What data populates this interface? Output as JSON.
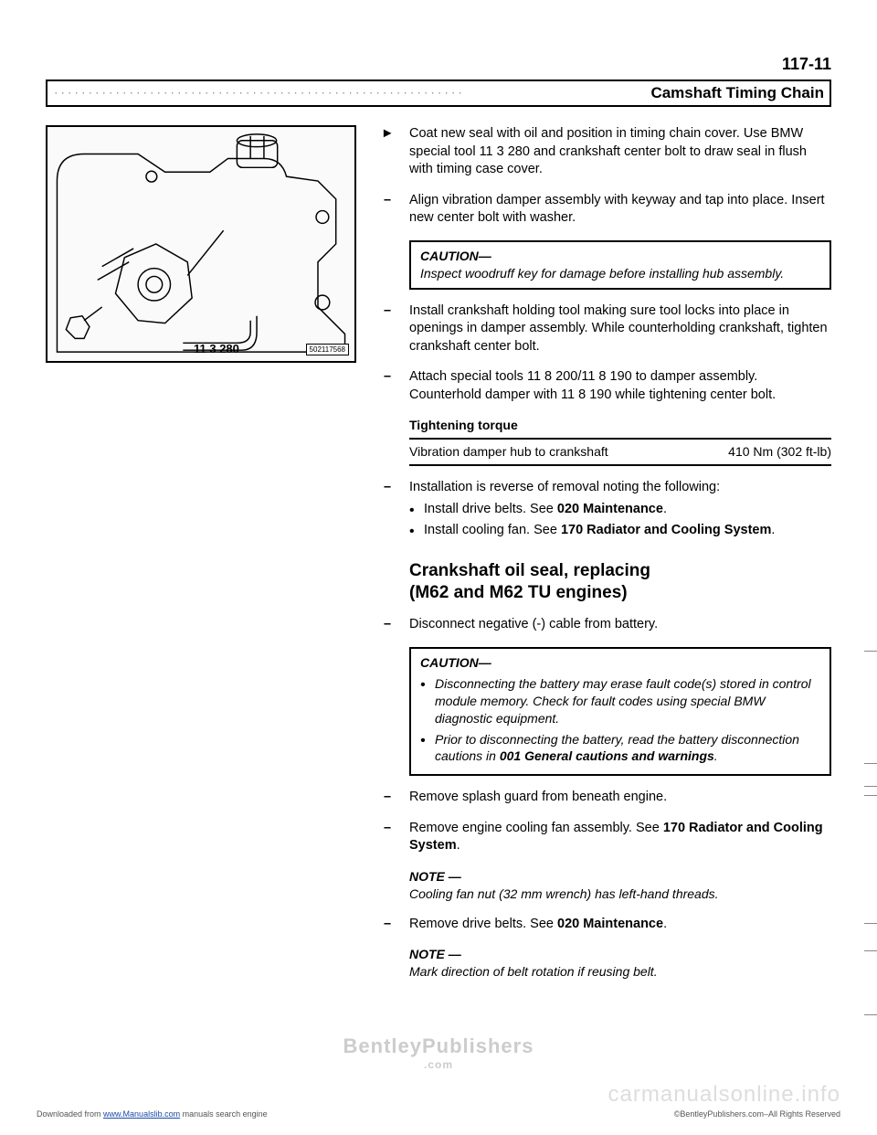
{
  "page_number": "117-11",
  "chapter_title": "Camshaft Timing Chain",
  "figure": {
    "tool_label": "11 3 280",
    "ref": "502117568"
  },
  "steps": [
    {
      "marker": "◄",
      "text": "Coat new seal with oil and position in timing chain cover. Use BMW special tool 11 3 280 and crankshaft center bolt to draw seal in flush with timing case cover."
    },
    {
      "marker": "–",
      "text": "Align vibration damper assembly with keyway and tap into place. Insert new center bolt with washer."
    }
  ],
  "caution1": {
    "title": "CAUTION—",
    "text": "Inspect woodruff key for damage before installing hub assembly."
  },
  "steps2": [
    {
      "marker": "–",
      "text": "Install crankshaft holding tool making sure tool locks into place in openings in damper assembly. While counterholding crankshaft, tighten crankshaft center bolt."
    },
    {
      "marker": "–",
      "text": "Attach special tools 11 8 200/11 8 190 to damper assembly. Counterhold damper with 11 8 190 while tightening center bolt."
    }
  ],
  "torque": {
    "label": "Tightening torque",
    "desc": "Vibration damper hub to crankshaft",
    "value": "410 Nm (302 ft-lb)"
  },
  "step_install": {
    "marker": "–",
    "text": "Installation is reverse of removal noting the following:",
    "bullets": [
      "Install drive belts. See <b>020 Maintenance</b>.",
      "Install cooling fan. See <b>170 Radiator and Cooling System</b>."
    ]
  },
  "heading": "Crankshaft oil seal, replacing (M62 and M62 TU engines)",
  "step_disc": {
    "marker": "–",
    "text": "Disconnect negative (-) cable from battery."
  },
  "caution2": {
    "title": "CAUTION—",
    "bullets": [
      "Disconnecting the battery may erase fault code(s) stored in control module memory. Check for fault codes using special BMW diagnostic equipment.",
      "Prior to disconnecting the battery, read the battery disconnection cautions in <b>001 General cautions and warnings</b>."
    ]
  },
  "steps3": [
    {
      "marker": "–",
      "text": "Remove splash guard from beneath engine."
    },
    {
      "marker": "–",
      "text": "Remove engine cooling fan assembly. See <b>170 Radiator and Cooling System</b>."
    }
  ],
  "note1": {
    "title": "NOTE —",
    "text": "Cooling fan nut (32 mm wrench) has left-hand threads."
  },
  "step4": {
    "marker": "–",
    "text": "Remove drive belts. See <b>020 Maintenance</b>."
  },
  "note2": {
    "title": "NOTE —",
    "text": "Mark direction of belt rotation if reusing belt."
  },
  "watermark1": "BentleyPublishers",
  "watermark1_sub": ".com",
  "watermark2": "carmanualsonline.info",
  "footer_left_prefix": "Downloaded from ",
  "footer_left_link": "www.Manualslib.com",
  "footer_left_suffix": " manuals search engine",
  "footer_right": "©BentleyPublishers.com–All Rights Reserved"
}
